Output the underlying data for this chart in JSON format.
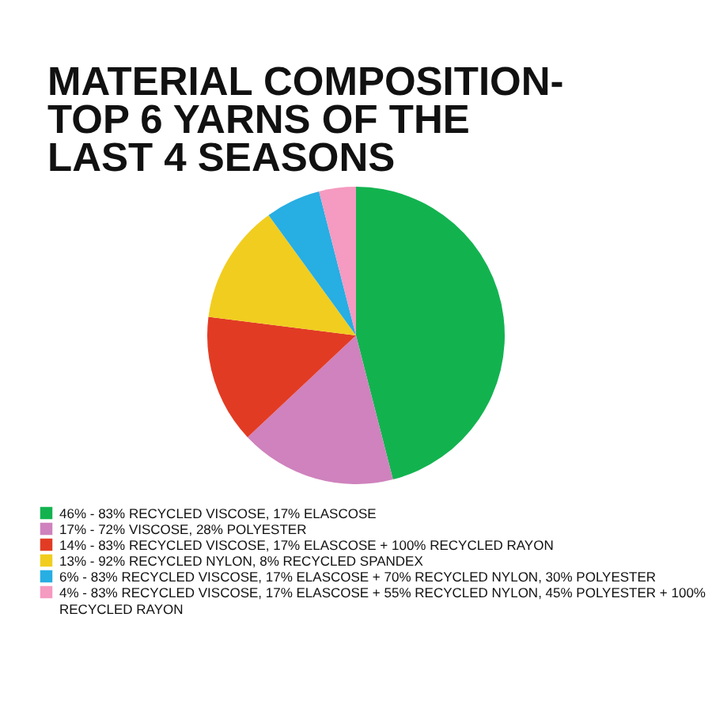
{
  "chart_data": {
    "type": "pie",
    "title": "MATERIAL COMPOSITION-TOP 6 YARNS OF THE LAST 4 SEASONS",
    "categories": [
      "46% - 83% RECYCLED VISCOSE, 17% ELASCOSE",
      "17% - 72% VISCOSE, 28% POLYESTER",
      "14% - 83% RECYCLED VISCOSE, 17% ELASCOSE + 100% RECYCLED RAYON",
      "13% - 92% RECYCLED NYLON, 8% RECYCLED SPANDEX",
      "6% - 83% RECYCLED VISCOSE, 17% ELASCOSE + 70% RECYCLED NYLON, 30% POLYESTER",
      "4% - 83% RECYCLED VISCOSE, 17% ELASCOSE + 55% RECYCLED NYLON, 45% POLYESTER + 100% RECYCLED RAYON"
    ],
    "values": [
      46,
      17,
      14,
      13,
      6,
      4
    ],
    "colors": [
      "#12b34f",
      "#cf82bd",
      "#e23b24",
      "#f1cd1f",
      "#27aee3",
      "#f59ac0"
    ],
    "legend": "bottom"
  }
}
